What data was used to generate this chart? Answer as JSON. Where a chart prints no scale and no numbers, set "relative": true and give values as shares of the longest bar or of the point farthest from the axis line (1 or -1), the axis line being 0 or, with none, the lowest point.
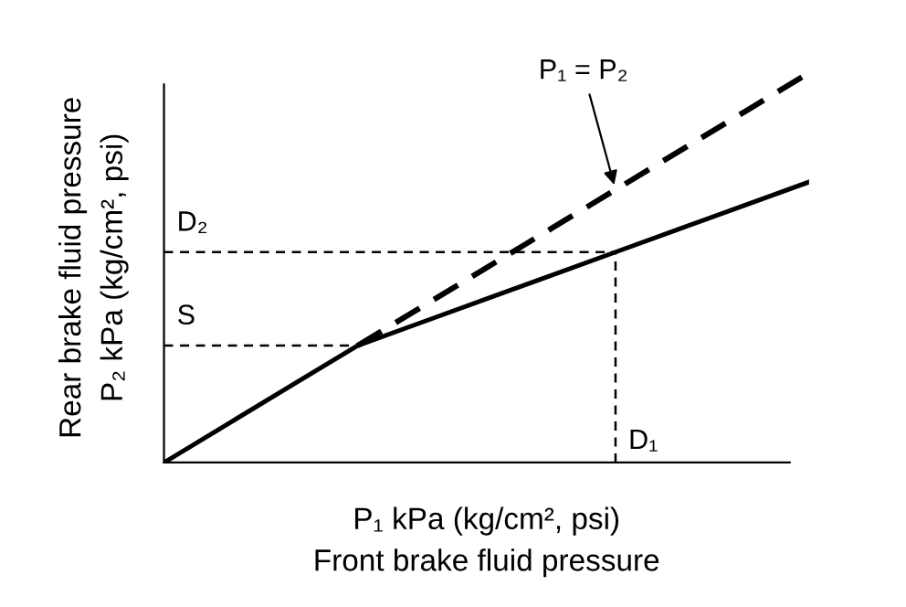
{
  "chart_data": {
    "type": "line",
    "relative": true,
    "xlabel": "P₁ kPa (kg/cm², psi)\nFront brake fluid pressure",
    "ylabel": "Rear brake fluid pressure\nP₂ kPa (kg/cm², psi)",
    "marker": "none",
    "categories": [
      null,
      null,
      null,
      null,
      null,
      null,
      null,
      null,
      null,
      null,
      null
    ],
    "series": [
      {
        "values": [
          0,
          0.1,
          0.2,
          0.3,
          0.36,
          0.42,
          0.48,
          0.54,
          0.6,
          0.66,
          0.72
        ],
        "color": "#000000",
        "line_style": "solid"
      },
      {
        "values": [
          null,
          null,
          null,
          0.3,
          0.4,
          0.5,
          0.6,
          0.7,
          0.8,
          0.9,
          1.0
        ],
        "color": "#000000",
        "line_style": "dashed"
      }
    ],
    "ref_lines": [
      {
        "axis": "y",
        "value": 0.54,
        "label": "D₂",
        "line_style": "dashed",
        "color": "#000000"
      },
      {
        "axis": "y",
        "value": 0.3,
        "label": "S",
        "line_style": "dashed",
        "color": "#000000"
      }
    ],
    "annotations": [
      "P₁ = P₂",
      "D₁"
    ]
  }
}
